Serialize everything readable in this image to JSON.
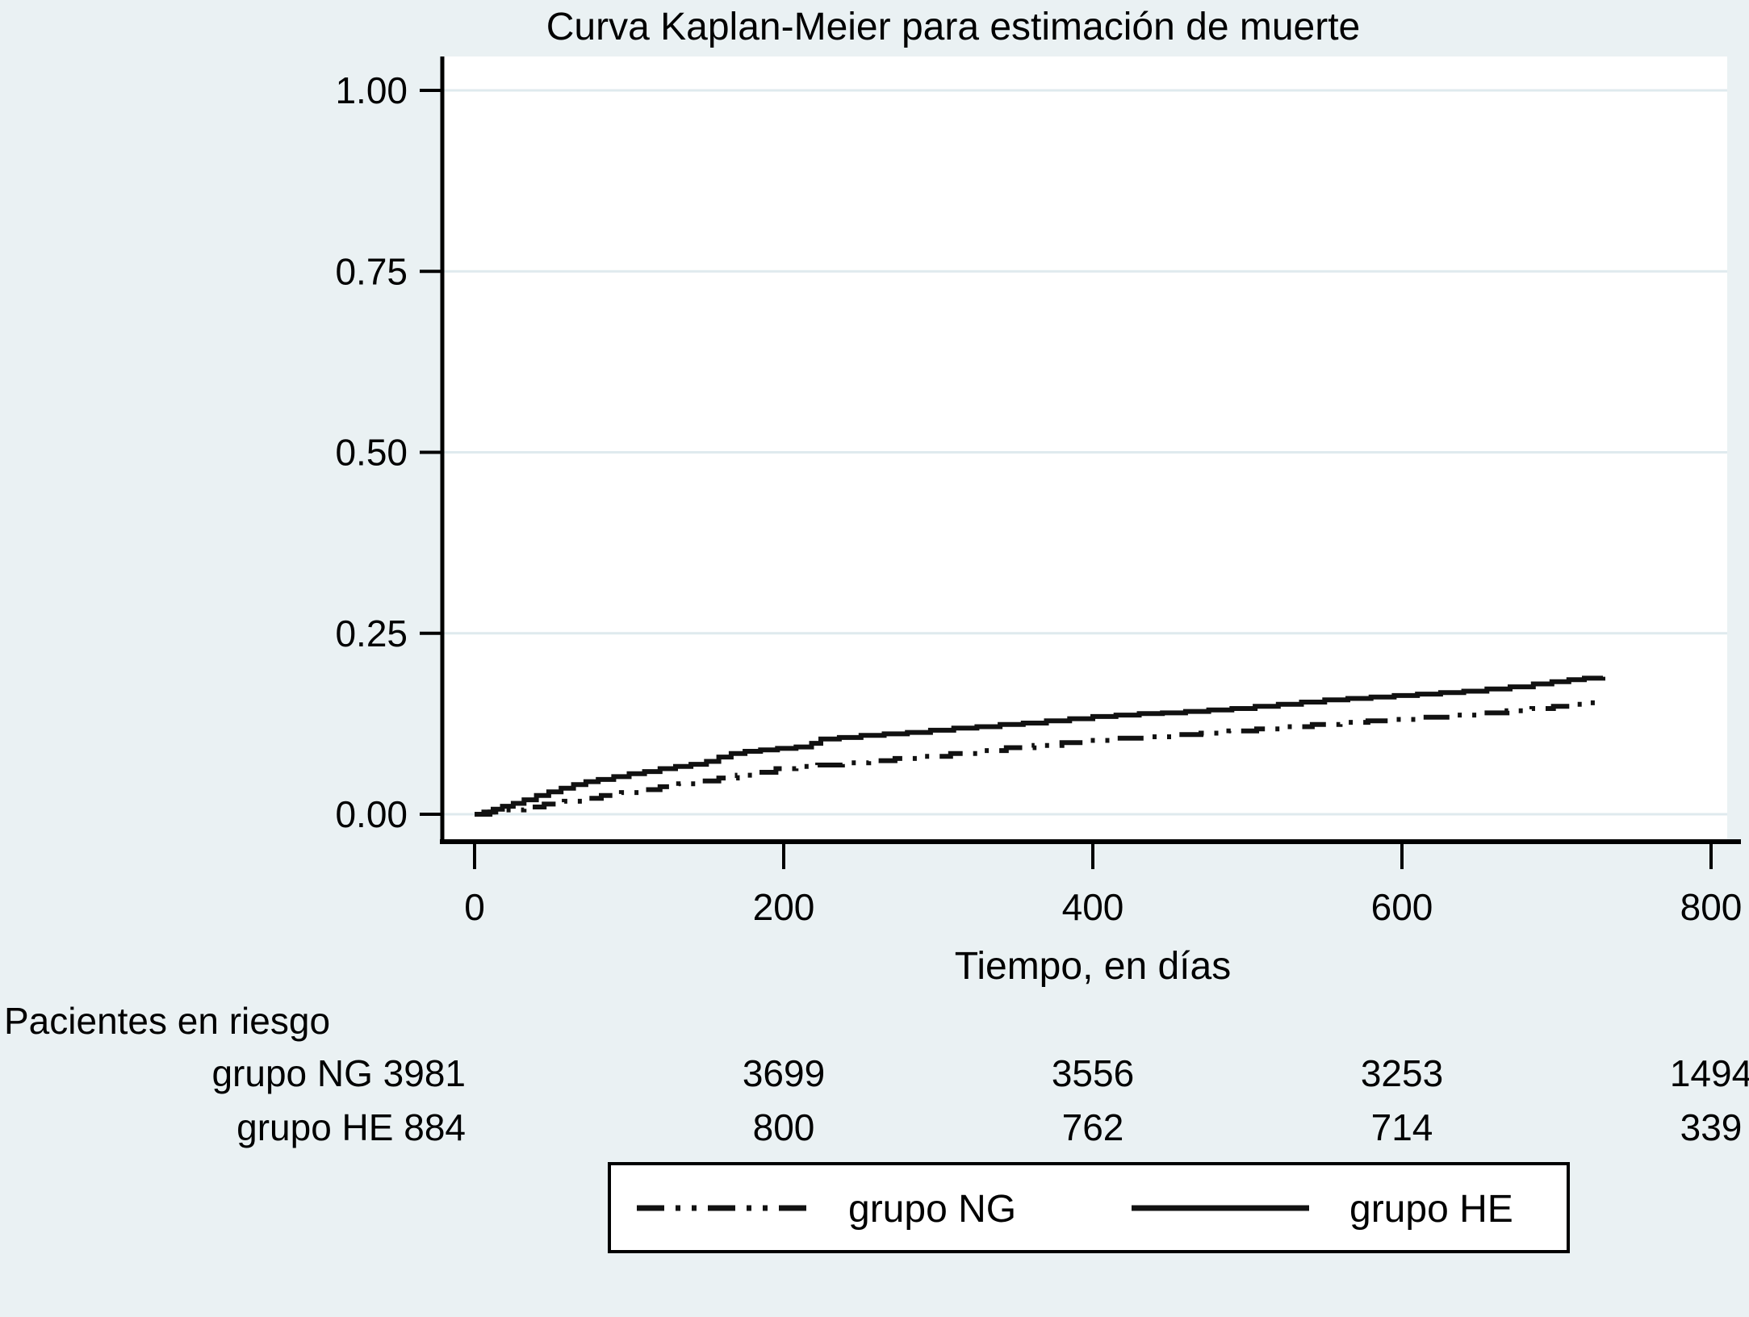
{
  "title": "Curva Kaplan-Meier para estimación de muerte",
  "colors": {
    "figure_background": "#eaf1f3",
    "plot_background": "#ffffff",
    "gridline": "#dfeaee",
    "axis": "#000000",
    "curve": "#111111"
  },
  "chart_data": {
    "type": "line",
    "subtype": "kaplan-meier-failure-step",
    "title": "Curva Kaplan-Meier para estimación de muerte",
    "xlabel": "Tiempo, en días",
    "ylabel": "",
    "xlim": [
      0,
      800
    ],
    "ylim": [
      0.0,
      1.0
    ],
    "x_ticks": [
      "0",
      "200",
      "400",
      "600",
      "800"
    ],
    "y_ticks": [
      "0.00",
      "0.25",
      "0.50",
      "0.75",
      "1.00"
    ],
    "grid": "horizontal-only",
    "legend_position": "bottom-box",
    "series": [
      {
        "name": "grupo NG",
        "line_style": "dash-dot-dot",
        "color": "#111111",
        "points": [
          [
            0,
            0
          ],
          [
            10,
            0.003
          ],
          [
            20,
            0.006
          ],
          [
            32,
            0.01
          ],
          [
            45,
            0.014
          ],
          [
            58,
            0.018
          ],
          [
            70,
            0.022
          ],
          [
            82,
            0.026
          ],
          [
            95,
            0.03
          ],
          [
            108,
            0.034
          ],
          [
            120,
            0.038
          ],
          [
            132,
            0.042
          ],
          [
            145,
            0.046
          ],
          [
            158,
            0.05
          ],
          [
            170,
            0.054
          ],
          [
            182,
            0.058
          ],
          [
            195,
            0.063
          ],
          [
            208,
            0.066
          ],
          [
            222,
            0.068
          ],
          [
            238,
            0.071
          ],
          [
            255,
            0.074
          ],
          [
            272,
            0.077
          ],
          [
            290,
            0.08
          ],
          [
            308,
            0.084
          ],
          [
            326,
            0.088
          ],
          [
            344,
            0.092
          ],
          [
            362,
            0.095
          ],
          [
            380,
            0.099
          ],
          [
            398,
            0.102
          ],
          [
            416,
            0.105
          ],
          [
            434,
            0.107
          ],
          [
            452,
            0.11
          ],
          [
            470,
            0.112
          ],
          [
            488,
            0.115
          ],
          [
            506,
            0.118
          ],
          [
            524,
            0.121
          ],
          [
            542,
            0.124
          ],
          [
            560,
            0.127
          ],
          [
            578,
            0.129
          ],
          [
            596,
            0.131
          ],
          [
            614,
            0.134
          ],
          [
            632,
            0.137
          ],
          [
            650,
            0.14
          ],
          [
            668,
            0.143
          ],
          [
            684,
            0.146
          ],
          [
            698,
            0.149
          ],
          [
            712,
            0.152
          ],
          [
            722,
            0.154
          ],
          [
            730,
            0.155
          ]
        ]
      },
      {
        "name": "grupo HE",
        "line_style": "solid",
        "color": "#111111",
        "points": [
          [
            0,
            0
          ],
          [
            6,
            0.003
          ],
          [
            12,
            0.007
          ],
          [
            18,
            0.011
          ],
          [
            25,
            0.015
          ],
          [
            32,
            0.02
          ],
          [
            40,
            0.026
          ],
          [
            48,
            0.031
          ],
          [
            56,
            0.036
          ],
          [
            64,
            0.041
          ],
          [
            72,
            0.045
          ],
          [
            80,
            0.048
          ],
          [
            90,
            0.052
          ],
          [
            100,
            0.056
          ],
          [
            110,
            0.059
          ],
          [
            120,
            0.063
          ],
          [
            130,
            0.066
          ],
          [
            140,
            0.069
          ],
          [
            150,
            0.073
          ],
          [
            158,
            0.079
          ],
          [
            166,
            0.084
          ],
          [
            175,
            0.087
          ],
          [
            185,
            0.089
          ],
          [
            196,
            0.091
          ],
          [
            208,
            0.093
          ],
          [
            218,
            0.098
          ],
          [
            224,
            0.104
          ],
          [
            236,
            0.106
          ],
          [
            250,
            0.109
          ],
          [
            265,
            0.111
          ],
          [
            280,
            0.113
          ],
          [
            295,
            0.116
          ],
          [
            310,
            0.119
          ],
          [
            325,
            0.121
          ],
          [
            340,
            0.124
          ],
          [
            355,
            0.126
          ],
          [
            370,
            0.129
          ],
          [
            385,
            0.132
          ],
          [
            400,
            0.135
          ],
          [
            415,
            0.137
          ],
          [
            430,
            0.139
          ],
          [
            445,
            0.14
          ],
          [
            460,
            0.142
          ],
          [
            475,
            0.144
          ],
          [
            490,
            0.146
          ],
          [
            505,
            0.149
          ],
          [
            520,
            0.152
          ],
          [
            535,
            0.155
          ],
          [
            550,
            0.158
          ],
          [
            565,
            0.16
          ],
          [
            580,
            0.162
          ],
          [
            595,
            0.164
          ],
          [
            610,
            0.166
          ],
          [
            625,
            0.168
          ],
          [
            640,
            0.17
          ],
          [
            655,
            0.173
          ],
          [
            670,
            0.176
          ],
          [
            685,
            0.18
          ],
          [
            697,
            0.183
          ],
          [
            708,
            0.186
          ],
          [
            718,
            0.188
          ],
          [
            730,
            0.19
          ]
        ]
      }
    ]
  },
  "risk_table": {
    "heading": "Pacientes en riesgo",
    "time_points": [
      0,
      200,
      400,
      600,
      800
    ],
    "rows": [
      {
        "label": "grupo NG",
        "counts": [
          "3981",
          "3699",
          "3556",
          "3253",
          "1494"
        ]
      },
      {
        "label": "grupo HE",
        "counts": [
          "884",
          "800",
          "762",
          "714",
          "339"
        ]
      }
    ]
  },
  "legend": {
    "entries": [
      {
        "label": "grupo NG",
        "line_style": "dash-dot-dot"
      },
      {
        "label": "grupo HE",
        "line_style": "solid"
      }
    ]
  }
}
